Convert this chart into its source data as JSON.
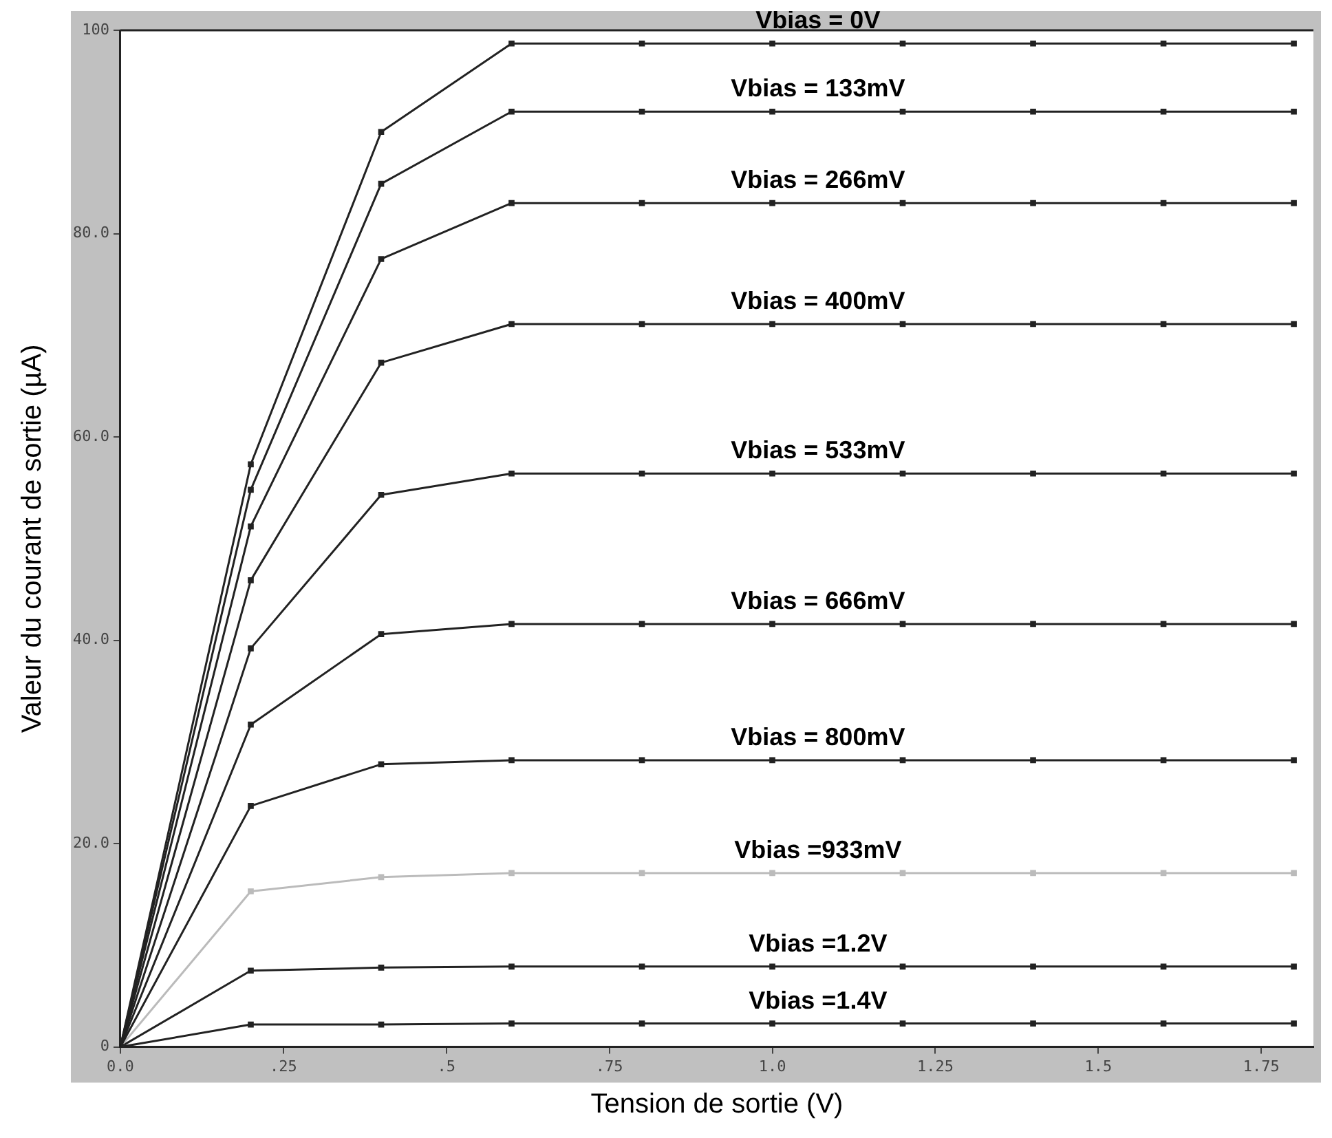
{
  "chart_data": {
    "type": "line",
    "xlabel": "Tension de sortie (V)",
    "ylabel": "Valeur du courant de sortie (µA)",
    "x": [
      0,
      0.2,
      0.4,
      0.6,
      0.8,
      1.0,
      1.2,
      1.4,
      1.6,
      1.8
    ],
    "xlim": [
      0,
      1.83
    ],
    "xticks": [
      {
        "value": 0,
        "label": "0.0"
      },
      {
        "value": 0.25,
        "label": ".25"
      },
      {
        "value": 0.5,
        "label": ".5"
      },
      {
        "value": 0.75,
        "label": ".75"
      },
      {
        "value": 1,
        "label": "1.0"
      },
      {
        "value": 1.25,
        "label": "1.25"
      },
      {
        "value": 1.5,
        "label": "1.5"
      },
      {
        "value": 1.75,
        "label": "1.75"
      }
    ],
    "ylim": [
      0,
      100
    ],
    "yticks": [
      {
        "value": 0,
        "label": "0"
      },
      {
        "value": 20,
        "label": "20.0"
      },
      {
        "value": 40,
        "label": "40.0"
      },
      {
        "value": 60,
        "label": "60.0"
      },
      {
        "value": 80,
        "label": "80.0"
      },
      {
        "value": 100,
        "label": "100"
      }
    ],
    "grid": false,
    "legend": false,
    "marker": "square",
    "series": [
      {
        "name": "Vbias = 0V",
        "color": "#222222",
        "values": [
          0,
          57.3,
          90.0,
          98.7,
          98.7,
          98.7,
          98.7,
          98.7,
          98.7,
          98.7
        ]
      },
      {
        "name": "Vbias = 133mV",
        "color": "#222222",
        "values": [
          0,
          54.8,
          84.9,
          92.0,
          92.0,
          92.0,
          92.0,
          92.0,
          92.0,
          92.0
        ]
      },
      {
        "name": "Vbias = 266mV",
        "color": "#222222",
        "values": [
          0,
          51.2,
          77.5,
          83.0,
          83.0,
          83.0,
          83.0,
          83.0,
          83.0,
          83.0
        ]
      },
      {
        "name": "Vbias = 400mV",
        "color": "#222222",
        "values": [
          0,
          45.9,
          67.3,
          71.1,
          71.1,
          71.1,
          71.1,
          71.1,
          71.1,
          71.1
        ]
      },
      {
        "name": "Vbias = 533mV",
        "color": "#222222",
        "values": [
          0,
          39.2,
          54.3,
          56.4,
          56.4,
          56.4,
          56.4,
          56.4,
          56.4,
          56.4
        ]
      },
      {
        "name": "Vbias = 666mV",
        "color": "#222222",
        "values": [
          0,
          31.7,
          40.6,
          41.6,
          41.6,
          41.6,
          41.6,
          41.6,
          41.6,
          41.6
        ]
      },
      {
        "name": "Vbias = 800mV",
        "color": "#222222",
        "values": [
          0,
          23.7,
          27.8,
          28.2,
          28.2,
          28.2,
          28.2,
          28.2,
          28.2,
          28.2
        ]
      },
      {
        "name": "Vbias =933mV",
        "color": "#bbbbbb",
        "values": [
          0,
          15.3,
          16.7,
          17.1,
          17.1,
          17.1,
          17.1,
          17.1,
          17.1,
          17.1
        ]
      },
      {
        "name": "Vbias =1.2V",
        "color": "#222222",
        "values": [
          0,
          7.5,
          7.8,
          7.9,
          7.9,
          7.9,
          7.9,
          7.9,
          7.9,
          7.9
        ]
      },
      {
        "name": "Vbias =1.4V",
        "color": "#222222",
        "values": [
          0,
          2.2,
          2.2,
          2.3,
          2.3,
          2.3,
          2.3,
          2.3,
          2.3,
          2.3
        ]
      }
    ]
  }
}
